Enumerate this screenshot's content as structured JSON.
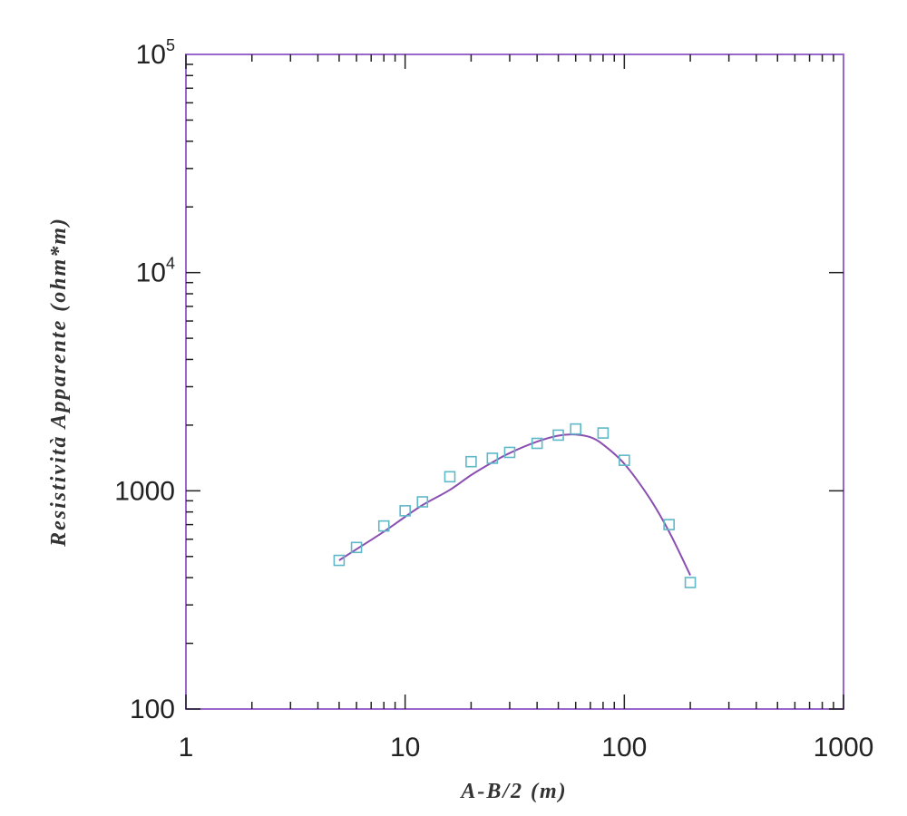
{
  "chart_data": {
    "type": "scatter",
    "title": "",
    "xlabel": "A-B/2 (m)",
    "ylabel": "Resistività Apparente (ohm*m)",
    "x_scale": "log",
    "y_scale": "log",
    "xlim": [
      1,
      1000
    ],
    "ylim": [
      100,
      100000
    ],
    "grid": false,
    "x_ticks": [
      {
        "value": 1,
        "label": "1"
      },
      {
        "value": 10,
        "label": "10"
      },
      {
        "value": 100,
        "label": "100"
      },
      {
        "value": 1000,
        "label": "1000"
      }
    ],
    "y_ticks": [
      {
        "value": 100,
        "label": "100"
      },
      {
        "value": 1000,
        "label": "1000"
      },
      {
        "value": 10000,
        "base": "10",
        "exp": "4"
      },
      {
        "value": 100000,
        "base": "10",
        "exp": "5"
      }
    ],
    "series": [
      {
        "kind": "points",
        "marker": "square",
        "color": "#5fb8c8",
        "x": [
          5,
          6,
          8,
          10,
          12,
          16,
          20,
          25,
          30,
          40,
          50,
          60,
          80,
          100,
          160,
          200
        ],
        "y": [
          480,
          550,
          690,
          810,
          890,
          1160,
          1360,
          1410,
          1500,
          1650,
          1800,
          1920,
          1840,
          1380,
          700,
          380
        ]
      },
      {
        "kind": "curve",
        "color": "#8a4fb0",
        "x": [
          5,
          6,
          8,
          10,
          12,
          16,
          20,
          25,
          30,
          40,
          50,
          60,
          70,
          80,
          100,
          130,
          160,
          200
        ],
        "y": [
          480,
          540,
          650,
          760,
          860,
          1010,
          1180,
          1350,
          1490,
          1680,
          1790,
          1810,
          1760,
          1630,
          1330,
          930,
          650,
          410
        ]
      }
    ],
    "colors": {
      "frame": "#9966cc",
      "axis": "#222222"
    }
  }
}
